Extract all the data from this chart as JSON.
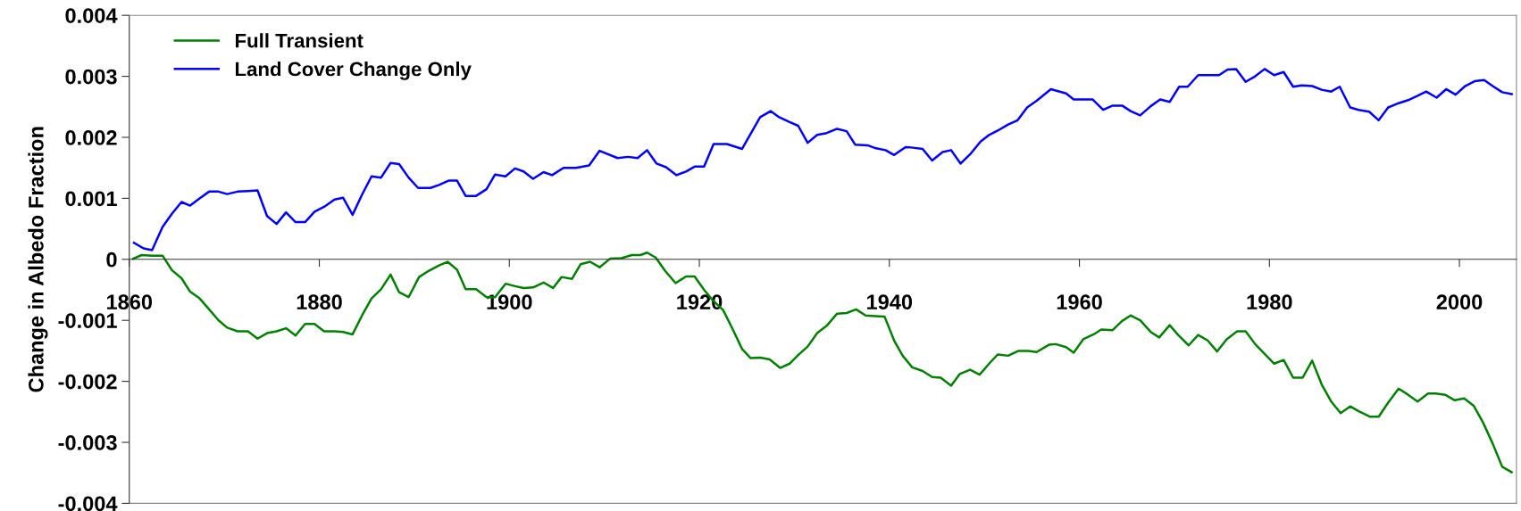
{
  "chart_data": {
    "type": "line",
    "ylabel": "Change in Albedo Fraction",
    "xlim": [
      1860,
      2006
    ],
    "xticks": [
      1860,
      1880,
      1900,
      1920,
      1940,
      1960,
      1980,
      2000
    ],
    "ylim": [
      -0.004,
      0.004
    ],
    "yticks": [
      -0.004,
      -0.003,
      -0.002,
      -0.001,
      0,
      0.001,
      0.002,
      0.003,
      0.004
    ],
    "grid": false,
    "legend": "top left",
    "marker": "none",
    "line_style": "solid",
    "series": [
      {
        "name": "Full Transient",
        "color": "#008000",
        "x": [
          1860.4,
          1861.3,
          1862.4,
          1863.5,
          1864.5,
          1865.5,
          1866.4,
          1867.4,
          1868.4,
          1869.4,
          1870.3,
          1871.4,
          1872.5,
          1873.5,
          1874.5,
          1875.5,
          1876.5,
          1877.5,
          1878.5,
          1879.5,
          1880.5,
          1881.6,
          1882.5,
          1883.5,
          1884.5,
          1885.5,
          1886.5,
          1887.5,
          1888.4,
          1889.4,
          1890.5,
          1891.5,
          1892.6,
          1893.5,
          1894.5,
          1895.4,
          1896.5,
          1897.6,
          1898.5,
          1899.6,
          1900.6,
          1901.5,
          1902.5,
          1903.6,
          1904.6,
          1905.5,
          1906.6,
          1907.5,
          1908.5,
          1909.5,
          1910.6,
          1911.8,
          1912.9,
          1913.8,
          1914.5,
          1915.4,
          1916.4,
          1917.5,
          1918.6,
          1919.5,
          1920.5,
          1921.4,
          1922.5,
          1923.4,
          1924.5,
          1925.4,
          1926.4,
          1927.4,
          1928.5,
          1929.5,
          1930.4,
          1931.4,
          1932.4,
          1933.4,
          1934.5,
          1935.5,
          1936.5,
          1937.5,
          1938.5,
          1939.5,
          1940.5,
          1941.4,
          1942.4,
          1943.5,
          1944.5,
          1945.4,
          1946.5,
          1947.4,
          1948.5,
          1949.5,
          1950.5,
          1951.4,
          1952.5,
          1953.6,
          1954.6,
          1955.5,
          1956.8,
          1957.5,
          1958.6,
          1959.4,
          1960.4,
          1961.5,
          1962.3,
          1963.5,
          1964.5,
          1965.4,
          1966.4,
          1967.5,
          1968.4,
          1969.5,
          1970.4,
          1971.5,
          1972.5,
          1973.5,
          1974.5,
          1975.5,
          1976.6,
          1977.5,
          1978.5,
          1979.5,
          1980.5,
          1981.5,
          1982.5,
          1983.5,
          1984.5,
          1985.5,
          1986.5,
          1987.5,
          1988.5,
          1989.4,
          1990.6,
          1991.5,
          1992.5,
          1993.6,
          1994.6,
          1995.6,
          1996.7,
          1997.5,
          1998.5,
          1999.5,
          2000.5,
          2001.5,
          2002.5,
          2003.5,
          2004.5,
          2005.5
        ],
        "values": [
          1e-05,
          7e-05,
          6e-05,
          6e-05,
          -0.00018,
          -0.00031,
          -0.00053,
          -0.00064,
          -0.00082,
          -0.001,
          -0.00112,
          -0.00118,
          -0.00118,
          -0.0013,
          -0.00121,
          -0.00118,
          -0.00113,
          -0.00125,
          -0.00106,
          -0.00106,
          -0.00118,
          -0.00118,
          -0.00119,
          -0.00123,
          -0.00092,
          -0.00064,
          -0.00049,
          -0.00025,
          -0.00054,
          -0.00062,
          -0.00029,
          -0.00019,
          -0.0001,
          -4e-05,
          -0.00017,
          -0.00049,
          -0.00049,
          -0.00062,
          -0.00062,
          -0.0004,
          -0.00044,
          -0.00047,
          -0.00046,
          -0.00038,
          -0.00047,
          -0.00029,
          -0.00032,
          -8e-05,
          -4e-05,
          -0.00013,
          1e-05,
          2e-05,
          7e-05,
          7e-05,
          0.00011,
          3e-05,
          -0.00019,
          -0.00039,
          -0.00028,
          -0.00028,
          -0.0005,
          -0.00067,
          -0.00083,
          -0.00111,
          -0.00147,
          -0.00162,
          -0.00161,
          -0.00164,
          -0.00178,
          -0.00171,
          -0.00157,
          -0.00143,
          -0.00121,
          -0.00109,
          -0.00089,
          -0.00088,
          -0.00082,
          -0.00092,
          -0.00093,
          -0.00094,
          -0.00133,
          -0.00158,
          -0.00177,
          -0.00183,
          -0.00193,
          -0.00194,
          -0.00207,
          -0.00188,
          -0.00181,
          -0.00189,
          -0.00171,
          -0.00156,
          -0.00158,
          -0.0015,
          -0.0015,
          -0.00152,
          -0.0014,
          -0.00139,
          -0.00144,
          -0.00153,
          -0.00131,
          -0.00123,
          -0.00115,
          -0.00116,
          -0.00101,
          -0.00092,
          -0.001,
          -0.00119,
          -0.00128,
          -0.00108,
          -0.00124,
          -0.00141,
          -0.00124,
          -0.00133,
          -0.00151,
          -0.00131,
          -0.00118,
          -0.00118,
          -0.00139,
          -0.00155,
          -0.00171,
          -0.00165,
          -0.00194,
          -0.00194,
          -0.00166,
          -0.00205,
          -0.00233,
          -0.00252,
          -0.00241,
          -0.00249,
          -0.00258,
          -0.00258,
          -0.00235,
          -0.00212,
          -0.00222,
          -0.00233,
          -0.0022,
          -0.0022,
          -0.00222,
          -0.00231,
          -0.00228,
          -0.0024,
          -0.00268,
          -0.00302,
          -0.0034,
          -0.00349
        ]
      },
      {
        "name": "Land Cover Change Only",
        "color": "#0000ff",
        "x": [
          1860.5,
          1861.5,
          1862.4,
          1863.5,
          1864.5,
          1865.5,
          1866.4,
          1867.4,
          1868.4,
          1869.4,
          1870.3,
          1871.4,
          1872.5,
          1873.5,
          1874.5,
          1875.5,
          1876.5,
          1877.5,
          1878.5,
          1879.5,
          1880.5,
          1881.6,
          1882.5,
          1883.5,
          1884.5,
          1885.5,
          1886.5,
          1887.5,
          1888.4,
          1889.4,
          1890.4,
          1891.7,
          1892.6,
          1893.6,
          1894.5,
          1895.4,
          1896.5,
          1897.6,
          1898.5,
          1899.6,
          1900.6,
          1901.5,
          1902.5,
          1903.6,
          1904.5,
          1905.7,
          1907.0,
          1908.4,
          1909.5,
          1911.4,
          1912.5,
          1913.5,
          1914.5,
          1915.5,
          1916.5,
          1917.6,
          1918.6,
          1919.5,
          1920.5,
          1921.5,
          1922.9,
          1924.5,
          1926.4,
          1927.5,
          1928.4,
          1929.5,
          1930.4,
          1931.4,
          1932.4,
          1933.4,
          1934.5,
          1935.5,
          1936.4,
          1937.7,
          1938.6,
          1939.6,
          1940.5,
          1941.7,
          1942.5,
          1943.5,
          1944.5,
          1945.6,
          1946.5,
          1947.5,
          1948.6,
          1949.6,
          1950.5,
          1951.4,
          1952.5,
          1953.5,
          1954.5,
          1955.5,
          1957.0,
          1958.6,
          1959.4,
          1961.4,
          1962.5,
          1963.5,
          1964.5,
          1965.4,
          1966.4,
          1967.5,
          1968.5,
          1969.5,
          1970.5,
          1971.4,
          1972.5,
          1974.7,
          1975.6,
          1976.5,
          1977.5,
          1978.5,
          1979.5,
          1980.5,
          1981.5,
          1982.5,
          1983.4,
          1984.5,
          1985.5,
          1986.5,
          1987.4,
          1988.5,
          1989.4,
          1990.5,
          1991.5,
          1992.5,
          1993.6,
          1994.6,
          1995.6,
          1996.5,
          1997.6,
          1998.6,
          1999.6,
          2000.6,
          2001.6,
          2002.6,
          2003.5,
          2004.5,
          2005.5
        ],
        "values": [
          0.00027,
          0.00018,
          0.00015,
          0.00053,
          0.00075,
          0.00094,
          0.00088,
          0.001,
          0.00111,
          0.00111,
          0.00107,
          0.00111,
          0.00112,
          0.00113,
          0.00071,
          0.00058,
          0.00077,
          0.00061,
          0.00061,
          0.00078,
          0.00086,
          0.00098,
          0.00101,
          0.00073,
          0.00106,
          0.00136,
          0.00134,
          0.00158,
          0.00156,
          0.00134,
          0.00117,
          0.00117,
          0.00122,
          0.00129,
          0.00129,
          0.00104,
          0.00104,
          0.00115,
          0.00139,
          0.00136,
          0.00149,
          0.00144,
          0.00132,
          0.00143,
          0.00138,
          0.0015,
          0.0015,
          0.00154,
          0.00178,
          0.00166,
          0.00168,
          0.00166,
          0.00179,
          0.00157,
          0.00151,
          0.00138,
          0.00144,
          0.00152,
          0.00152,
          0.00189,
          0.00189,
          0.00181,
          0.00233,
          0.00243,
          0.00233,
          0.00225,
          0.00219,
          0.00191,
          0.00204,
          0.00207,
          0.00214,
          0.0021,
          0.00188,
          0.00187,
          0.00182,
          0.00179,
          0.00171,
          0.00184,
          0.00183,
          0.00181,
          0.00162,
          0.00176,
          0.00179,
          0.00157,
          0.00174,
          0.00193,
          0.00204,
          0.00211,
          0.00221,
          0.00228,
          0.00249,
          0.0026,
          0.00279,
          0.00272,
          0.00262,
          0.00262,
          0.00245,
          0.00252,
          0.00252,
          0.00243,
          0.00236,
          0.00251,
          0.00262,
          0.00258,
          0.00283,
          0.00283,
          0.00302,
          0.00302,
          0.00311,
          0.00312,
          0.00291,
          0.003,
          0.00312,
          0.00302,
          0.00307,
          0.00283,
          0.00285,
          0.00284,
          0.00278,
          0.00275,
          0.00283,
          0.00249,
          0.00245,
          0.00242,
          0.00228,
          0.00249,
          0.00256,
          0.00261,
          0.00268,
          0.00275,
          0.00265,
          0.00279,
          0.0027,
          0.00284,
          0.00292,
          0.00294,
          0.00284,
          0.00274,
          0.00271
        ]
      }
    ]
  }
}
